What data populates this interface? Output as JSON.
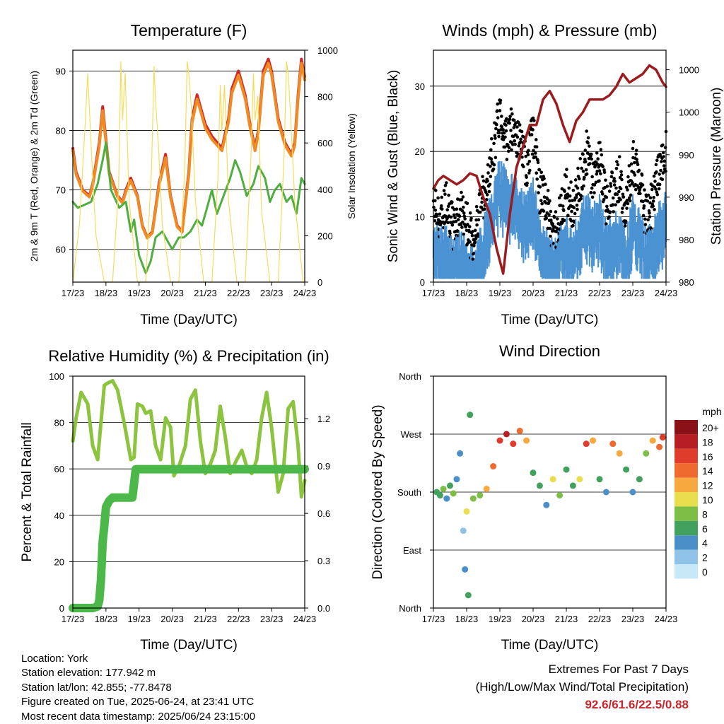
{
  "x_tick_labels": [
    "17/23",
    "18/23",
    "19/23",
    "20/23",
    "21/23",
    "22/23",
    "23/23",
    "24/23"
  ],
  "chart_data": [
    {
      "type": "line",
      "title": "Temperature (F)",
      "xlabel": "Time (Day/UTC)",
      "ylabel": "2m & 9m T (Red, Orange) & 2m Td (Green)",
      "ylabel_right": "Solar Insolation (Yellow)",
      "ylim": [
        54.5,
        93.5
      ],
      "ylim_right": [
        0,
        1000
      ],
      "yticks": [
        60,
        70,
        80,
        90
      ],
      "yticks_right": [
        0,
        200,
        400,
        600,
        800,
        1000
      ],
      "grid": "y",
      "series": [
        {
          "color": "#cf2a27",
          "x": [
            0,
            0.1,
            0.3,
            0.5,
            0.6,
            0.8,
            0.9,
            1.1,
            1.35,
            1.5,
            1.6,
            1.75,
            1.95,
            2.1,
            2.25,
            2.4,
            2.6,
            2.8,
            2.95,
            3.15,
            3.3,
            3.5,
            3.6,
            3.75,
            3.85,
            4.0,
            4.2,
            4.5,
            4.7,
            4.8,
            5.0,
            5.2,
            5.35,
            5.5,
            5.6,
            5.75,
            5.9,
            6.0,
            6.2,
            6.4,
            6.6,
            6.7,
            6.8,
            6.9,
            7.0
          ],
          "y": [
            77,
            73,
            70,
            69,
            71,
            78,
            84,
            73,
            69,
            68,
            70,
            72,
            69,
            64,
            62,
            63,
            71,
            76,
            69,
            64,
            63,
            73,
            82,
            86,
            84,
            81,
            79,
            77,
            82,
            87,
            90,
            86,
            81,
            77,
            80,
            90,
            92,
            90,
            82,
            78,
            76,
            78,
            86,
            92,
            89
          ]
        },
        {
          "color": "#f08a24",
          "x": [
            0,
            0.1,
            0.3,
            0.5,
            0.6,
            0.8,
            0.9,
            1.1,
            1.35,
            1.5,
            1.6,
            1.75,
            1.95,
            2.1,
            2.25,
            2.4,
            2.6,
            2.8,
            2.95,
            3.15,
            3.3,
            3.5,
            3.6,
            3.75,
            3.85,
            4.0,
            4.2,
            4.5,
            4.7,
            4.8,
            5.0,
            5.2,
            5.35,
            5.5,
            5.6,
            5.75,
            5.9,
            6.0,
            6.2,
            6.4,
            6.6,
            6.7,
            6.8,
            6.9,
            7.0
          ],
          "y": [
            76.6,
            72.6,
            69.8,
            68.8,
            70.7,
            77.4,
            83.3,
            72.7,
            68.8,
            67.8,
            69.7,
            71.6,
            68.8,
            63.8,
            61.9,
            62.8,
            70.6,
            75.4,
            68.7,
            63.8,
            62.9,
            72.5,
            81.3,
            85.3,
            83.4,
            80.4,
            78.5,
            76.6,
            81.4,
            86.3,
            89.3,
            85.4,
            80.5,
            76.6,
            79.5,
            89.3,
            91.3,
            89.4,
            81.5,
            77.6,
            75.7,
            77.5,
            85.3,
            91.3,
            88.5
          ]
        },
        {
          "color": "#4fae3f",
          "x": [
            0,
            0.15,
            0.35,
            0.55,
            0.75,
            0.9,
            1.0,
            1.15,
            1.4,
            1.6,
            1.75,
            1.85,
            2.0,
            2.2,
            2.35,
            2.5,
            2.7,
            2.9,
            3.0,
            3.2,
            3.35,
            3.55,
            3.75,
            3.9,
            4.05,
            4.2,
            4.35,
            4.55,
            4.75,
            4.9,
            5.05,
            5.25,
            5.45,
            5.6,
            5.8,
            5.95,
            6.1,
            6.25,
            6.45,
            6.6,
            6.75,
            6.9,
            7.0
          ],
          "y": [
            68,
            67,
            67.5,
            68,
            71,
            75,
            78,
            70,
            67,
            68,
            63,
            65,
            59,
            56,
            58,
            62,
            63,
            61,
            60,
            62,
            62,
            63,
            65,
            64,
            67,
            70,
            66,
            69,
            72,
            75,
            73,
            69,
            71,
            74,
            72,
            68,
            70,
            71,
            68,
            69,
            66,
            72,
            71
          ]
        },
        {
          "color": "#f5dc5c",
          "axis": "right",
          "x": [
            0,
            0.2,
            0.38,
            0.45,
            0.5,
            0.58,
            0.7,
            0.95,
            1.2,
            1.38,
            1.45,
            1.5,
            1.58,
            1.7,
            1.95,
            2.2,
            2.38,
            2.45,
            2.5,
            2.58,
            2.7,
            2.95,
            3.2,
            3.38,
            3.45,
            3.5,
            3.58,
            3.7,
            3.95,
            4.2,
            4.38,
            4.45,
            4.5,
            4.58,
            4.7,
            4.95,
            5.2,
            5.38,
            5.45,
            5.5,
            5.58,
            5.7,
            5.95,
            6.2,
            6.38,
            6.45,
            6.5,
            6.58,
            6.7,
            6.95,
            7.0
          ],
          "y": [
            0,
            250,
            700,
            900,
            750,
            500,
            200,
            0,
            0,
            400,
            950,
            700,
            900,
            350,
            0,
            0,
            500,
            930,
            780,
            600,
            250,
            0,
            0,
            500,
            950,
            900,
            750,
            350,
            0,
            0,
            450,
            850,
            650,
            850,
            350,
            0,
            0,
            550,
            900,
            700,
            800,
            300,
            0,
            0,
            550,
            950,
            900,
            700,
            350,
            0,
            0
          ]
        }
      ]
    },
    {
      "type": "scatter",
      "title": "Winds (mph) & Pressure (mb)",
      "xlabel": "Time (Day/UTC)",
      "ylabel": "Sonic Wind & Gust (Blue, Black)",
      "ylabel_right": "Station Pressure (Maroon)",
      "ylim": [
        0,
        35.5
      ],
      "yticks": [
        0,
        10,
        20,
        30
      ],
      "yticks_right_labels": [
        "980",
        "980",
        "990",
        "990",
        "1000",
        "1000"
      ],
      "ylim_right": [
        975,
        1002.3
      ],
      "yticks_right_values": [
        975,
        980,
        985,
        990,
        995,
        1000
      ],
      "grid": "y",
      "series": [
        {
          "color": "#000000",
          "x": [
            0,
            0.2,
            0.4,
            0.6,
            0.8,
            1.0,
            1.2,
            1.4,
            1.6,
            1.8,
            2.0,
            2.2,
            2.4,
            2.6,
            2.8,
            3.0,
            3.2,
            3.4,
            3.6,
            3.8,
            4.0,
            4.2,
            4.4,
            4.6,
            4.8,
            5.0,
            5.2,
            5.4,
            5.6,
            5.8,
            6.0,
            6.2,
            6.4,
            6.6,
            6.8,
            7.0
          ],
          "y": [
            12,
            9,
            13,
            8,
            11,
            9,
            6,
            12,
            14,
            20,
            26,
            22,
            24,
            21,
            18,
            23,
            14,
            12,
            7,
            10,
            14,
            11,
            15,
            20,
            16,
            19,
            12,
            14,
            16,
            11,
            19,
            15,
            10,
            12,
            17,
            20
          ]
        },
        {
          "color": "#4b92d2",
          "x": [
            0,
            0.2,
            0.4,
            0.6,
            0.8,
            1.0,
            1.2,
            1.4,
            1.6,
            1.8,
            2.0,
            2.2,
            2.4,
            2.6,
            2.8,
            3.0,
            3.2,
            3.4,
            3.6,
            3.8,
            4.0,
            4.2,
            4.4,
            4.6,
            4.8,
            5.0,
            5.2,
            5.4,
            5.6,
            5.8,
            6.0,
            6.2,
            6.4,
            6.6,
            6.8,
            7.0
          ],
          "y": [
            8,
            6,
            7,
            4,
            6,
            4,
            3,
            6,
            9,
            13,
            17,
            15,
            14,
            13,
            11,
            14,
            8,
            6,
            4,
            6,
            8,
            6,
            9,
            12,
            10,
            11,
            7,
            8,
            9,
            6,
            11,
            9,
            6,
            7,
            10,
            12
          ]
        },
        {
          "color": "#9a1c1f",
          "axis": "right",
          "x": [
            0,
            0.15,
            0.3,
            0.5,
            0.7,
            0.9,
            1.1,
            1.3,
            1.5,
            1.7,
            1.9,
            2.1,
            2.3,
            2.5,
            2.7,
            2.9,
            3.1,
            3.3,
            3.5,
            3.7,
            3.9,
            4.1,
            4.3,
            4.5,
            4.7,
            4.9,
            5.1,
            5.3,
            5.5,
            5.7,
            5.9,
            6.1,
            6.3,
            6.5,
            6.7,
            6.9,
            7.0
          ],
          "y": [
            986,
            987,
            987.5,
            987,
            986.5,
            987,
            987.8,
            987.5,
            985,
            983,
            979,
            976,
            983,
            988.5,
            991,
            993.5,
            993.5,
            996.5,
            997.5,
            996,
            993.5,
            991.5,
            994,
            995,
            996.5,
            996.5,
            996.5,
            997,
            998,
            999.5,
            998.5,
            999,
            999.5,
            1000.5,
            1000,
            998.5,
            998
          ]
        }
      ]
    },
    {
      "type": "line",
      "title": "Relative Humidity (%) & Precipitation (in)",
      "xlabel": "Time (Day/UTC)",
      "ylabel": "Percent & Total Rainfall",
      "ylim": [
        0,
        100
      ],
      "yticks": [
        0,
        20,
        40,
        60,
        80,
        100
      ],
      "ylim_right": [
        0,
        1.47
      ],
      "yticks_right": [
        0.0,
        0.3,
        0.6,
        0.9,
        1.2
      ],
      "grid": "y",
      "series": [
        {
          "color": "#8dc43f",
          "x": [
            0,
            0.1,
            0.25,
            0.45,
            0.6,
            0.75,
            0.85,
            0.95,
            1.05,
            1.2,
            1.35,
            1.55,
            1.75,
            1.85,
            1.95,
            2.1,
            2.2,
            2.35,
            2.5,
            2.65,
            2.8,
            2.95,
            3.05,
            3.2,
            3.4,
            3.55,
            3.7,
            3.85,
            4.0,
            4.15,
            4.3,
            4.45,
            4.6,
            4.75,
            4.95,
            5.1,
            5.25,
            5.4,
            5.55,
            5.7,
            5.85,
            6.0,
            6.2,
            6.35,
            6.5,
            6.65,
            6.8,
            6.9,
            7.0
          ],
          "y": [
            72,
            82,
            93,
            88,
            70,
            64,
            80,
            96,
            97,
            98,
            94,
            80,
            64,
            65,
            88,
            87,
            84,
            85,
            70,
            64,
            82,
            78,
            57,
            61,
            70,
            90,
            94,
            72,
            58,
            62,
            68,
            87,
            74,
            58,
            64,
            68,
            61,
            58,
            64,
            82,
            93,
            78,
            50,
            58,
            86,
            89,
            70,
            48,
            55
          ]
        },
        {
          "color": "#4db84a",
          "axis": "right",
          "x": [
            0,
            0.6,
            0.75,
            0.8,
            0.85,
            0.87,
            0.9,
            0.95,
            1.0,
            1.05,
            1.1,
            1.2,
            1.5,
            1.8,
            1.9,
            2.4,
            3.0,
            4.0,
            5.0,
            6.0,
            7.0
          ],
          "y": [
            0,
            0,
            0.01,
            0.05,
            0.18,
            0.28,
            0.42,
            0.52,
            0.64,
            0.66,
            0.68,
            0.7,
            0.7,
            0.7,
            0.88,
            0.88,
            0.88,
            0.88,
            0.88,
            0.88,
            0.88
          ]
        }
      ]
    },
    {
      "type": "scatter",
      "title": "Wind Direction",
      "xlabel": "Time (Day/UTC)",
      "ylabel": "Direction (Colored By Speed)",
      "y_category_labels": [
        "North",
        "East",
        "South",
        "West",
        "North"
      ],
      "ylim": [
        0,
        360
      ],
      "grid": "y",
      "colorbar": {
        "title": "mph",
        "labels": [
          "0",
          "2",
          "4",
          "6",
          "8",
          "10",
          "12",
          "14",
          "16",
          "18",
          "20+"
        ],
        "colors": [
          "#c6e8f7",
          "#8fc3e8",
          "#4b8fc9",
          "#41a15d",
          "#7cbe46",
          "#e9df4e",
          "#f6a93e",
          "#ee6a2f",
          "#e03c2c",
          "#b61e24",
          "#8a1116"
        ]
      },
      "points": [
        {
          "x": 0.1,
          "y": 180,
          "s": 6
        },
        {
          "x": 0.2,
          "y": 175,
          "s": 5
        },
        {
          "x": 0.3,
          "y": 185,
          "s": 7
        },
        {
          "x": 0.4,
          "y": 170,
          "s": 4
        },
        {
          "x": 0.5,
          "y": 190,
          "s": 6
        },
        {
          "x": 0.6,
          "y": 178,
          "s": 8
        },
        {
          "x": 0.7,
          "y": 200,
          "s": 4
        },
        {
          "x": 0.8,
          "y": 240,
          "s": 3
        },
        {
          "x": 0.9,
          "y": 120,
          "s": 2
        },
        {
          "x": 0.95,
          "y": 60,
          "s": 3
        },
        {
          "x": 1.0,
          "y": 150,
          "s": 10
        },
        {
          "x": 1.05,
          "y": 20,
          "s": 5
        },
        {
          "x": 1.1,
          "y": 300,
          "s": 6
        },
        {
          "x": 1.2,
          "y": 170,
          "s": 7
        },
        {
          "x": 1.4,
          "y": 175,
          "s": 8
        },
        {
          "x": 1.6,
          "y": 185,
          "s": 11
        },
        {
          "x": 1.8,
          "y": 220,
          "s": 14
        },
        {
          "x": 2.0,
          "y": 260,
          "s": 16
        },
        {
          "x": 2.2,
          "y": 270,
          "s": 18
        },
        {
          "x": 2.4,
          "y": 255,
          "s": 15
        },
        {
          "x": 2.6,
          "y": 275,
          "s": 13
        },
        {
          "x": 2.8,
          "y": 260,
          "s": 12
        },
        {
          "x": 3.0,
          "y": 210,
          "s": 6
        },
        {
          "x": 3.2,
          "y": 190,
          "s": 5
        },
        {
          "x": 3.4,
          "y": 160,
          "s": 4
        },
        {
          "x": 3.6,
          "y": 200,
          "s": 9
        },
        {
          "x": 3.8,
          "y": 175,
          "s": 7
        },
        {
          "x": 4.0,
          "y": 215,
          "s": 6
        },
        {
          "x": 4.2,
          "y": 190,
          "s": 5
        },
        {
          "x": 4.4,
          "y": 200,
          "s": 10
        },
        {
          "x": 4.6,
          "y": 255,
          "s": 15
        },
        {
          "x": 4.8,
          "y": 260,
          "s": 12
        },
        {
          "x": 5.0,
          "y": 200,
          "s": 6
        },
        {
          "x": 5.2,
          "y": 180,
          "s": 4
        },
        {
          "x": 5.4,
          "y": 255,
          "s": 13
        },
        {
          "x": 5.6,
          "y": 240,
          "s": 11
        },
        {
          "x": 5.8,
          "y": 215,
          "s": 6
        },
        {
          "x": 6.0,
          "y": 180,
          "s": 4
        },
        {
          "x": 6.2,
          "y": 200,
          "s": 5
        },
        {
          "x": 6.4,
          "y": 240,
          "s": 8
        },
        {
          "x": 6.6,
          "y": 260,
          "s": 12
        },
        {
          "x": 6.8,
          "y": 250,
          "s": 14
        },
        {
          "x": 6.9,
          "y": 265,
          "s": 16
        }
      ]
    }
  ],
  "footer": {
    "location": "Location: York",
    "elevation": "Station elevation: 177.942 m",
    "latlon": "Station lat/lon: 42.855; -77.8478",
    "created": "Figure created on Tue, 2025-06-24, at 23:41 UTC",
    "recent": "Most recent data timestamp: 2025/06/24 23:15:00"
  },
  "extremes": {
    "title": "Extremes For Past 7 Days",
    "subtitle": "(High/Low/Max Wind/Total Precipitation)",
    "values": "92.6/61.6/22.5/0.88"
  }
}
